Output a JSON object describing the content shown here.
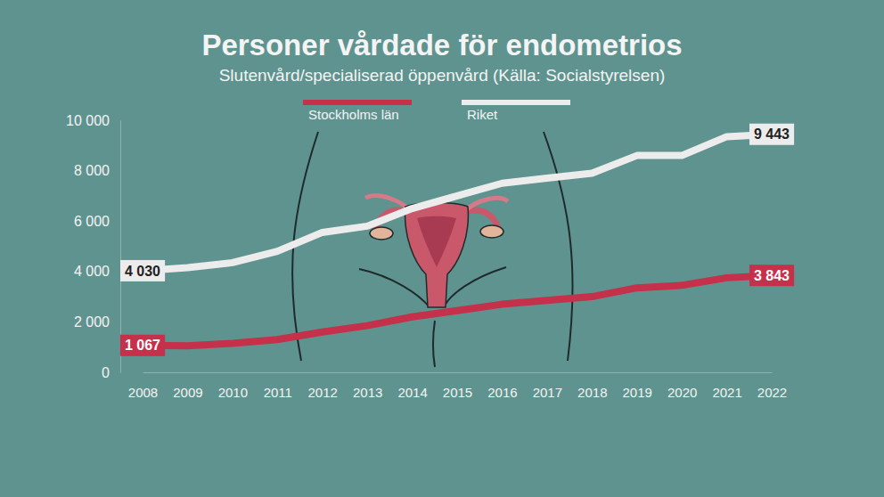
{
  "chart_data": {
    "type": "line",
    "title": "Personer vårdade för endometrios",
    "subtitle": "Slutenvård/specialiserad öppenvård (Källa: Socialstyrelsen)",
    "categories": [
      "2008",
      "2009",
      "2010",
      "2011",
      "2012",
      "2013",
      "2014",
      "2015",
      "2016",
      "2017",
      "2018",
      "2019",
      "2020",
      "2021",
      "2022"
    ],
    "series": [
      {
        "name": "Stockholms län",
        "color": "#c5304a",
        "values": [
          1067,
          1050,
          1150,
          1300,
          1600,
          1850,
          2200,
          2450,
          2700,
          2850,
          3000,
          3350,
          3450,
          3750,
          3843
        ],
        "value_labels": [
          "1 067",
          null,
          null,
          null,
          null,
          null,
          null,
          null,
          null,
          null,
          null,
          null,
          null,
          null,
          "3 843"
        ]
      },
      {
        "name": "Riket",
        "color": "#ececec",
        "values": [
          4030,
          4150,
          4350,
          4800,
          5550,
          5800,
          6500,
          7000,
          7500,
          7700,
          7900,
          8600,
          8600,
          9350,
          9443
        ],
        "value_labels": [
          "4 030",
          null,
          null,
          null,
          null,
          null,
          null,
          null,
          null,
          null,
          null,
          null,
          null,
          null,
          "9 443"
        ]
      }
    ],
    "ylim": [
      0,
      10000
    ],
    "yticks": [
      0,
      {
        "value": 2000,
        "label": "2 000"
      },
      {
        "value": 4000,
        "label": "4 000"
      },
      {
        "value": 6000,
        "label": "6 000"
      },
      {
        "value": 8000,
        "label": "8 000"
      },
      {
        "value": 10000,
        "label": "10 000"
      }
    ],
    "grid": false,
    "legend": "top",
    "data_labels": true
  }
}
